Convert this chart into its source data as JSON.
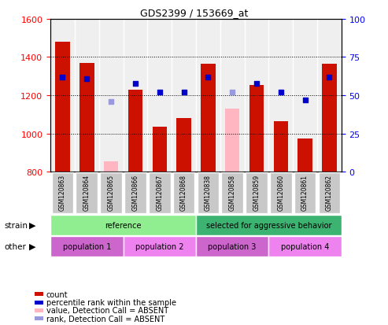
{
  "title": "GDS2399 / 153669_at",
  "samples": [
    "GSM120863",
    "GSM120864",
    "GSM120865",
    "GSM120866",
    "GSM120867",
    "GSM120868",
    "GSM120838",
    "GSM120858",
    "GSM120859",
    "GSM120860",
    "GSM120861",
    "GSM120862"
  ],
  "ylim_left": [
    800,
    1600
  ],
  "ylim_right": [
    0,
    100
  ],
  "yticks_left": [
    800,
    1000,
    1200,
    1400,
    1600
  ],
  "yticks_right": [
    0,
    25,
    50,
    75,
    100
  ],
  "count_values": [
    1480,
    1370,
    null,
    1230,
    1035,
    1080,
    1365,
    null,
    1255,
    1065,
    975,
    1365
  ],
  "absent_count_values": [
    null,
    null,
    855,
    null,
    null,
    null,
    null,
    1130,
    null,
    null,
    null,
    null
  ],
  "percentile_values": [
    62,
    61,
    null,
    58,
    52,
    52,
    62,
    null,
    58,
    52,
    47,
    62
  ],
  "absent_percentile_values": [
    null,
    null,
    46,
    null,
    null,
    null,
    null,
    52,
    null,
    null,
    null,
    null
  ],
  "absent_flags": [
    false,
    false,
    true,
    false,
    false,
    false,
    false,
    true,
    false,
    false,
    false,
    false
  ],
  "strain_groups": [
    {
      "label": "reference",
      "start": 0,
      "end": 6,
      "color": "#90EE90"
    },
    {
      "label": "selected for aggressive behavior",
      "start": 6,
      "end": 12,
      "color": "#3CB371"
    }
  ],
  "other_groups": [
    {
      "label": "population 1",
      "start": 0,
      "end": 3,
      "color": "#CC66CC"
    },
    {
      "label": "population 2",
      "start": 3,
      "end": 6,
      "color": "#EE82EE"
    },
    {
      "label": "population 3",
      "start": 6,
      "end": 9,
      "color": "#CC66CC"
    },
    {
      "label": "population 4",
      "start": 9,
      "end": 12,
      "color": "#EE82EE"
    }
  ],
  "bar_color_present": "#CC1100",
  "bar_color_absent": "#FFB6C1",
  "dot_color_present": "#0000CC",
  "dot_color_absent": "#9999DD",
  "col_bg_color": "#E0E0E0",
  "bar_width": 0.6,
  "legend_items": [
    {
      "label": "count",
      "color": "#CC1100"
    },
    {
      "label": "percentile rank within the sample",
      "color": "#0000CC"
    },
    {
      "label": "value, Detection Call = ABSENT",
      "color": "#FFB6C1"
    },
    {
      "label": "rank, Detection Call = ABSENT",
      "color": "#9999DD"
    }
  ]
}
